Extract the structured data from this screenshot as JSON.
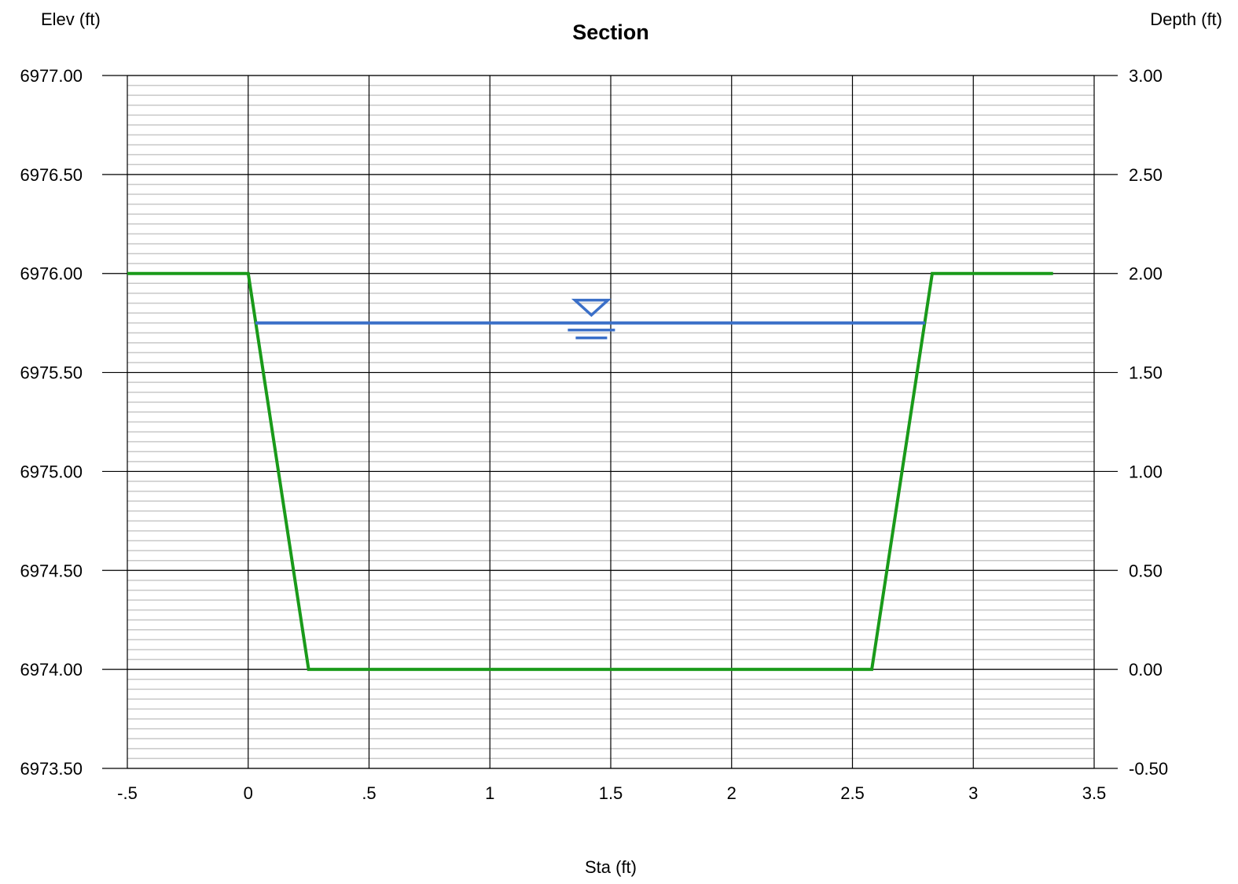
{
  "chart_data": {
    "type": "line",
    "title": "Section",
    "xlabel": "Sta (ft)",
    "ylabel_left": "Elev (ft)",
    "ylabel_right": "Depth (ft)",
    "xlim": [
      -0.5,
      3.5
    ],
    "ylim_left": [
      6973.5,
      6977.0
    ],
    "ylim_right": [
      -0.5,
      3.0
    ],
    "grid": true,
    "x_ticks": [
      -0.5,
      0,
      0.5,
      1,
      1.5,
      2,
      2.5,
      3,
      3.5
    ],
    "x_tick_labels": [
      "-.5",
      "0",
      ".5",
      "1",
      "1.5",
      "2",
      "2.5",
      "3",
      "3.5"
    ],
    "y_left_ticks": [
      6977.0,
      6976.5,
      6976.0,
      6975.5,
      6975.0,
      6974.5,
      6974.0,
      6973.5
    ],
    "y_left_tick_labels": [
      "6977.00",
      "6976.50",
      "6976.00",
      "6975.50",
      "6975.00",
      "6974.50",
      "6974.00",
      "6973.50"
    ],
    "y_right_tick_labels": [
      "3.00",
      "2.50",
      "2.00",
      "1.50",
      "1.00",
      "0.50",
      "0.00",
      "-0.50"
    ],
    "series": [
      {
        "color": "#1a9a1a",
        "x": [
          -0.5,
          0.0,
          0.25,
          2.58,
          2.83,
          3.33
        ],
        "y": [
          6976.0,
          6976.0,
          6974.0,
          6974.0,
          6976.0,
          6976.0
        ]
      },
      {
        "color": "#3a6fc8",
        "x": [
          0.03,
          2.8
        ],
        "y": [
          6975.75,
          6975.75
        ]
      }
    ],
    "water_symbol_x": 1.42,
    "colors": {
      "ground": "#1a9a1a",
      "water": "#3a6fc8",
      "major_grid": "#000000",
      "minor_grid": "#c8c8c8"
    }
  }
}
